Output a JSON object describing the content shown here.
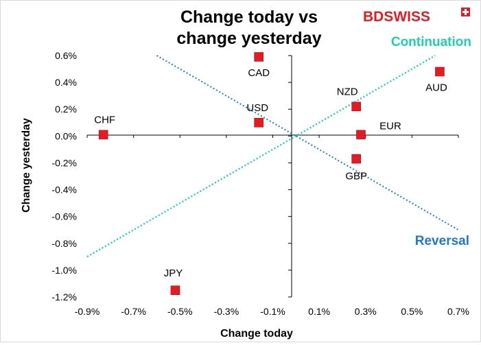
{
  "logo": {
    "text": "BDSWISS"
  },
  "chart_data": {
    "type": "scatter",
    "title": "Change today vs change yesterday",
    "title_lines": [
      "Change today vs",
      "change yesterday"
    ],
    "xlabel": "Change today",
    "ylabel": "Change yesterday",
    "xlim": [
      -0.9,
      0.7
    ],
    "ylim": [
      -1.2,
      0.6
    ],
    "x_ticks": [
      -0.9,
      -0.7,
      -0.5,
      -0.3,
      -0.1,
      0.1,
      0.3,
      0.5,
      0.7
    ],
    "x_tick_labels": [
      "-0.9%",
      "-0.7%",
      "-0.5%",
      "-0.3%",
      "-0.1%",
      "0.1%",
      "0.3%",
      "0.5%",
      "0.7%"
    ],
    "y_ticks": [
      0.6,
      0.4,
      0.2,
      0.0,
      -0.2,
      -0.4,
      -0.6,
      -0.8,
      -1.0,
      -1.2
    ],
    "y_tick_labels": [
      "0.6%",
      "0.4%",
      "0.2%",
      "0.0%",
      "-0.2%",
      "-0.4%",
      "-0.6%",
      "-0.8%",
      "-1.0%",
      "-1.2%"
    ],
    "grid": false,
    "points": [
      {
        "label": "CAD",
        "x": -0.16,
        "y": 0.59
      },
      {
        "label": "AUD",
        "x": 0.62,
        "y": 0.48
      },
      {
        "label": "NZD",
        "x": 0.26,
        "y": 0.22
      },
      {
        "label": "USD",
        "x": -0.16,
        "y": 0.1
      },
      {
        "label": "CHF",
        "x": -0.83,
        "y": 0.01
      },
      {
        "label": "EUR",
        "x": 0.28,
        "y": 0.01
      },
      {
        "label": "GBP",
        "x": 0.26,
        "y": -0.17
      },
      {
        "label": "JPY",
        "x": -0.52,
        "y": -1.15
      }
    ],
    "marker_color": "#e31c23",
    "lines": [
      {
        "label": "Continuation",
        "color": "#1fcfb0",
        "from": [
          -0.9,
          -0.9
        ],
        "to": [
          0.6,
          0.6
        ]
      },
      {
        "label": "Reversal",
        "color": "#1f78d1",
        "from": [
          -0.6,
          0.6
        ],
        "to": [
          0.7,
          -0.7
        ]
      }
    ]
  }
}
